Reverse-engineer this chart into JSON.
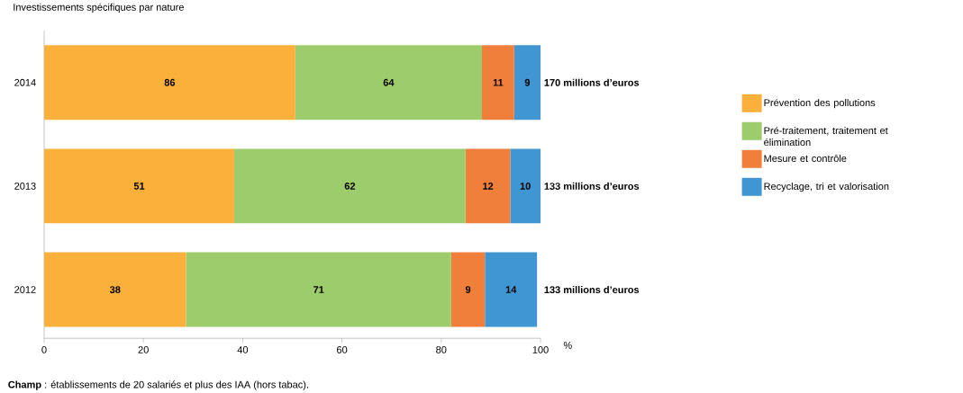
{
  "chart_data": {
    "type": "bar",
    "orientation": "horizontal",
    "stacked": true,
    "title": "Investissements spécifiques par nature",
    "categories": [
      "2014",
      "2013",
      "2012"
    ],
    "xlabel": "%",
    "series": [
      {
        "name": "Prévention des pollutions",
        "color": "#fbb03b",
        "values": [
          50.6,
          38.3,
          28.6
        ]
      },
      {
        "name": "Pré-traitement, traitement et élimination",
        "color": "#9ccc6c",
        "values": [
          37.6,
          46.6,
          53.4
        ]
      },
      {
        "name": "Mesure et contrôle",
        "color": "#f07f3c",
        "values": [
          6.5,
          9.0,
          6.8
        ]
      },
      {
        "name": "Recyclage, tri et valorisation",
        "color": "#3f96d2",
        "values": [
          5.3,
          6.1,
          10.5
        ]
      }
    ],
    "xlim": [
      0,
      100
    ],
    "xticks": [
      0,
      20,
      40,
      60,
      80,
      100
    ],
    "legend": "right",
    "grid": false,
    "annotations": [
      "86",
      "64",
      "11",
      "9",
      "51",
      "62",
      "12",
      "10",
      "38",
      "71",
      "9",
      "14",
      "170 millions d’euros",
      "133 millions d’euros",
      "133 millions d’euros",
      "**Champ** : établissements de 20 salariés et plus des IAA (hors tabac)."
    ]
  }
}
